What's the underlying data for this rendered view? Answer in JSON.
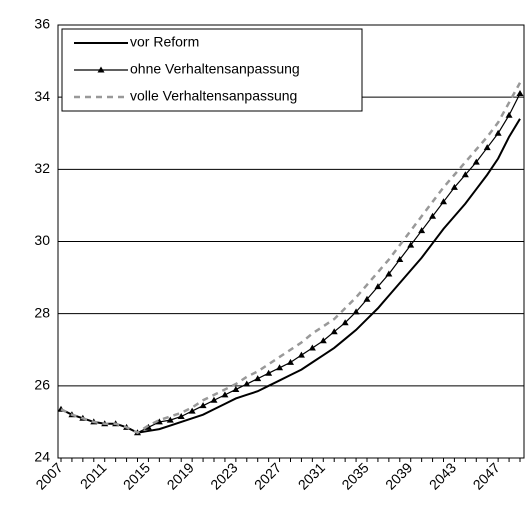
{
  "chart_data": {
    "type": "line",
    "categories": [
      "2007",
      null,
      null,
      null,
      "2011",
      null,
      null,
      null,
      "2015",
      null,
      null,
      null,
      "2019",
      null,
      null,
      null,
      "2023",
      null,
      null,
      null,
      "2027",
      null,
      null,
      null,
      "2031",
      null,
      null,
      null,
      "2035",
      null,
      null,
      null,
      "2039",
      null,
      null,
      null,
      "2043",
      null,
      null,
      null,
      "2047",
      null,
      null
    ],
    "series": [
      {
        "name": "vor Reform",
        "color": "#000000",
        "style": "solid",
        "values": [
          25.35,
          25.2,
          25.1,
          25.0,
          24.95,
          24.95,
          24.85,
          24.7,
          24.75,
          24.8,
          24.9,
          25.0,
          25.1,
          25.2,
          25.35,
          25.5,
          25.65,
          25.75,
          25.85,
          26.0,
          26.15,
          26.3,
          26.45,
          26.65,
          26.85,
          27.05,
          27.3,
          27.55,
          27.85,
          28.15,
          28.5,
          28.85,
          29.2,
          29.55,
          29.95,
          30.35,
          30.7,
          31.05,
          31.45,
          31.85,
          32.3,
          32.9,
          33.4
        ]
      },
      {
        "name": "ohne Verhaltensanpassung",
        "color": "#000000",
        "style": "triangle",
        "values": [
          25.35,
          25.2,
          25.1,
          25.0,
          24.95,
          24.95,
          24.85,
          24.7,
          24.85,
          25.0,
          25.05,
          25.15,
          25.3,
          25.45,
          25.6,
          25.75,
          25.9,
          26.05,
          26.2,
          26.35,
          26.5,
          26.65,
          26.85,
          27.05,
          27.25,
          27.5,
          27.75,
          28.05,
          28.4,
          28.75,
          29.1,
          29.5,
          29.9,
          30.3,
          30.7,
          31.1,
          31.5,
          31.85,
          32.2,
          32.6,
          33.0,
          33.5,
          34.1
        ]
      },
      {
        "name": "volle Verhaltensanpassung",
        "color": "#999999",
        "style": "dashed",
        "values": [
          25.35,
          25.2,
          25.1,
          25.0,
          24.95,
          24.95,
          24.85,
          24.7,
          24.9,
          25.05,
          25.15,
          25.25,
          25.4,
          25.6,
          25.75,
          25.9,
          26.05,
          26.25,
          26.4,
          26.6,
          26.8,
          27.0,
          27.2,
          27.45,
          27.65,
          27.85,
          28.15,
          28.45,
          28.8,
          29.15,
          29.5,
          29.9,
          30.3,
          30.7,
          31.1,
          31.5,
          31.85,
          32.2,
          32.55,
          32.9,
          33.3,
          33.85,
          34.4
        ]
      }
    ],
    "ylim": [
      24,
      36
    ],
    "yticks": [
      24,
      26,
      28,
      30,
      32,
      34,
      36
    ],
    "grid": true,
    "legend": "top-left"
  }
}
